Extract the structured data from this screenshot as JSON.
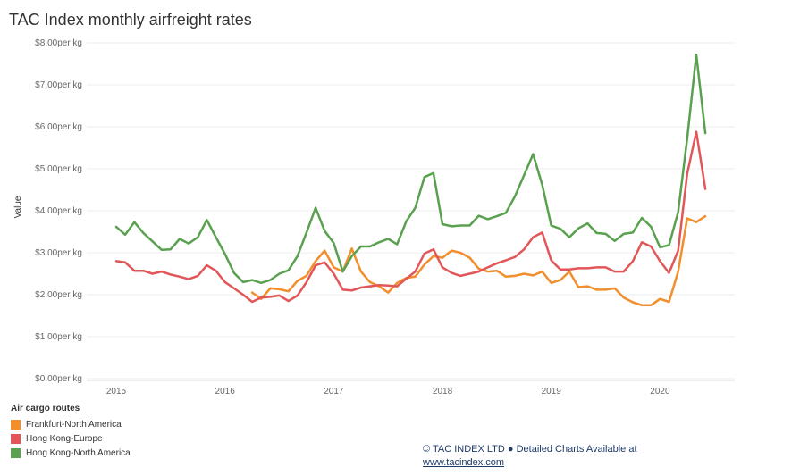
{
  "chart_data": {
    "type": "line",
    "title": "TAC Index monthly airfreight rates",
    "ylabel": "Value",
    "xlabel": "",
    "ylim": [
      0,
      8
    ],
    "x_start": "2015-01",
    "y_ticks": [
      {
        "value": 0,
        "label": "$0.00per kg"
      },
      {
        "value": 1,
        "label": "$1.00per kg"
      },
      {
        "value": 2,
        "label": "$2.00per kg"
      },
      {
        "value": 3,
        "label": "$3.00per kg"
      },
      {
        "value": 4,
        "label": "$4.00per kg"
      },
      {
        "value": 5,
        "label": "$5.00per kg"
      },
      {
        "value": 6,
        "label": "$6.00per kg"
      },
      {
        "value": 7,
        "label": "$7.00per kg"
      },
      {
        "value": 8,
        "label": "$8.00per kg"
      }
    ],
    "x_ticks": [
      {
        "value": "2015-01",
        "label": "2015"
      },
      {
        "value": "2016-01",
        "label": "2016"
      },
      {
        "value": "2017-01",
        "label": "2017"
      },
      {
        "value": "2018-01",
        "label": "2018"
      },
      {
        "value": "2019-01",
        "label": "2019"
      },
      {
        "value": "2020-01",
        "label": "2020"
      }
    ],
    "grid": true,
    "legend": {
      "title": "Air cargo routes",
      "position": "bottom-left"
    },
    "series": [
      {
        "name": "Frankfurt-North America",
        "color": "#f28e2b",
        "start": "2016-04",
        "values": [
          2.05,
          1.9,
          2.15,
          2.13,
          2.08,
          2.33,
          2.45,
          2.8,
          3.05,
          2.65,
          2.55,
          3.1,
          2.55,
          2.3,
          2.2,
          2.05,
          2.28,
          2.4,
          2.43,
          2.72,
          2.92,
          2.88,
          3.05,
          3.0,
          2.88,
          2.62,
          2.55,
          2.57,
          2.43,
          2.45,
          2.5,
          2.46,
          2.55,
          2.28,
          2.35,
          2.55,
          2.18,
          2.2,
          2.12,
          2.12,
          2.15,
          1.93,
          1.82,
          1.75,
          1.75,
          1.9,
          1.83,
          2.55,
          3.82,
          3.73,
          3.87
        ]
      },
      {
        "name": "Hong Kong-Europe",
        "color": "#e15759",
        "start": "2015-01",
        "values": [
          2.8,
          2.77,
          2.57,
          2.57,
          2.5,
          2.55,
          2.48,
          2.43,
          2.37,
          2.45,
          2.7,
          2.57,
          2.3,
          2.15,
          2.0,
          1.83,
          1.93,
          1.95,
          1.98,
          1.85,
          1.98,
          2.3,
          2.7,
          2.77,
          2.5,
          2.12,
          2.1,
          2.17,
          2.2,
          2.23,
          2.22,
          2.2,
          2.38,
          2.55,
          2.98,
          3.08,
          2.65,
          2.52,
          2.45,
          2.5,
          2.55,
          2.65,
          2.75,
          2.82,
          2.9,
          3.08,
          3.37,
          3.48,
          2.82,
          2.6,
          2.6,
          2.63,
          2.63,
          2.65,
          2.65,
          2.55,
          2.55,
          2.8,
          3.25,
          3.15,
          2.8,
          2.52,
          3.05,
          4.88,
          5.88,
          4.52
        ]
      },
      {
        "name": "Hong Kong-North America",
        "color": "#59a14f",
        "start": "2015-01",
        "values": [
          3.62,
          3.43,
          3.73,
          3.47,
          3.27,
          3.07,
          3.08,
          3.33,
          3.22,
          3.37,
          3.78,
          3.37,
          2.97,
          2.52,
          2.3,
          2.35,
          2.28,
          2.35,
          2.5,
          2.58,
          2.92,
          3.48,
          4.07,
          3.52,
          3.23,
          2.55,
          2.92,
          3.15,
          3.15,
          3.25,
          3.33,
          3.2,
          3.75,
          4.07,
          4.8,
          4.9,
          3.68,
          3.63,
          3.65,
          3.65,
          3.88,
          3.8,
          3.87,
          3.95,
          4.35,
          4.85,
          5.35,
          4.62,
          3.65,
          3.57,
          3.37,
          3.58,
          3.7,
          3.47,
          3.45,
          3.28,
          3.45,
          3.48,
          3.83,
          3.62,
          3.13,
          3.18,
          3.97,
          5.72,
          7.72,
          5.85
        ]
      }
    ]
  },
  "footer": {
    "credit_line": "© TAC INDEX LTD ● Detailed Charts Available at",
    "credit_link": "www.tacindex.com"
  }
}
